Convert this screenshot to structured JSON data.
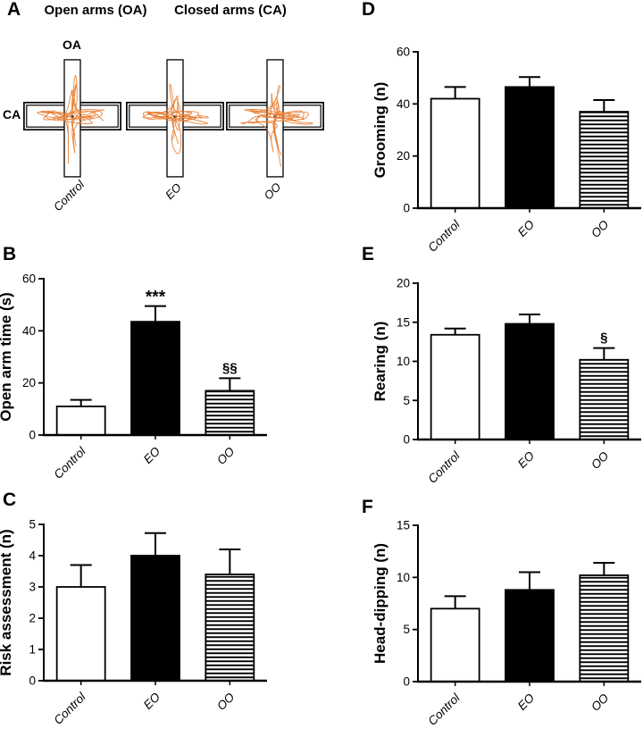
{
  "figure": {
    "trace_color": "#E87D33",
    "panelA": {
      "letter": "A",
      "header_open": "Open arms (OA)",
      "header_closed": "Closed arms (CA)",
      "oa_label": "OA",
      "ca_label": "CA",
      "maze_labels": [
        "Control",
        "EO",
        "OO"
      ]
    },
    "panel_letters": {
      "B": "B",
      "C": "C",
      "D": "D",
      "E": "E",
      "F": "F"
    }
  },
  "chart_data": [
    {
      "panel": "B",
      "type": "bar",
      "title": "",
      "xlabel": "",
      "ylabel": "Open arm time (s)",
      "categories": [
        "Control",
        "EO",
        "OO"
      ],
      "values": [
        11,
        43.5,
        17
      ],
      "errors": [
        2.5,
        6,
        4.8
      ],
      "ylim": [
        0,
        60
      ],
      "yticks": [
        0,
        20,
        40,
        60
      ],
      "annotations": [
        "",
        "***",
        "§§"
      ],
      "bar_styles": [
        "white",
        "black",
        "striped"
      ],
      "grid": false,
      "legend": "none"
    },
    {
      "panel": "C",
      "type": "bar",
      "title": "",
      "xlabel": "",
      "ylabel": "Risk assessment (n)",
      "categories": [
        "Control",
        "EO",
        "OO"
      ],
      "values": [
        3,
        4,
        3.4
      ],
      "errors": [
        0.7,
        0.72,
        0.8
      ],
      "ylim": [
        0,
        5
      ],
      "yticks": [
        0,
        1,
        2,
        3,
        4,
        5
      ],
      "annotations": [
        "",
        "",
        ""
      ],
      "bar_styles": [
        "white",
        "black",
        "striped"
      ],
      "grid": false,
      "legend": "none"
    },
    {
      "panel": "D",
      "type": "bar",
      "title": "",
      "xlabel": "",
      "ylabel": "Grooming (n)",
      "categories": [
        "Control",
        "EO",
        "OO"
      ],
      "values": [
        42,
        46.5,
        37
      ],
      "errors": [
        4.5,
        3.8,
        4.5
      ],
      "ylim": [
        0,
        60
      ],
      "yticks": [
        0,
        20,
        40,
        60
      ],
      "annotations": [
        "",
        "",
        ""
      ],
      "bar_styles": [
        "white",
        "black",
        "striped"
      ],
      "grid": false,
      "legend": "none"
    },
    {
      "panel": "E",
      "type": "bar",
      "title": "",
      "xlabel": "",
      "ylabel": "Rearing (n)",
      "categories": [
        "Control",
        "EO",
        "OO"
      ],
      "values": [
        13.4,
        14.8,
        10.2
      ],
      "errors": [
        0.8,
        1.2,
        1.5
      ],
      "ylim": [
        0,
        20
      ],
      "yticks": [
        0,
        5,
        10,
        15,
        20
      ],
      "annotations": [
        "",
        "",
        "§"
      ],
      "bar_styles": [
        "white",
        "black",
        "striped"
      ],
      "grid": false,
      "legend": "none"
    },
    {
      "panel": "F",
      "type": "bar",
      "title": "",
      "xlabel": "",
      "ylabel": "Head-dipping (n)",
      "categories": [
        "Control",
        "EO",
        "OO"
      ],
      "values": [
        7,
        8.8,
        10.2
      ],
      "errors": [
        1.2,
        1.7,
        1.2
      ],
      "ylim": [
        0,
        15
      ],
      "yticks": [
        0,
        5,
        10,
        15
      ],
      "annotations": [
        "",
        "",
        ""
      ],
      "bar_styles": [
        "white",
        "black",
        "striped"
      ],
      "grid": false,
      "legend": "none"
    }
  ]
}
